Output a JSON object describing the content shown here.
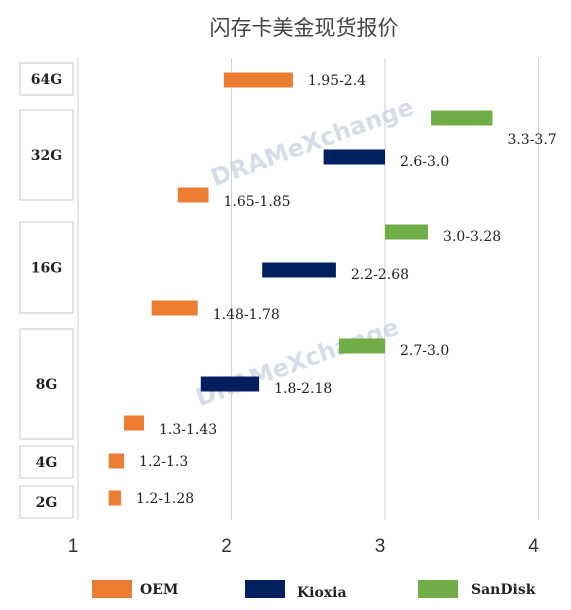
{
  "chart_data": {
    "type": "bar",
    "orientation": "horizontal-range",
    "title": "闪存卡美金现货报价",
    "x_ticks": [
      "1",
      "2",
      "3",
      "4"
    ],
    "xlim": [
      1,
      4.1
    ],
    "grid": true,
    "legend_position": "bottom",
    "watermark": "DRAMeXchange",
    "series": [
      {
        "name": "OEM",
        "color": "#ED7D31"
      },
      {
        "name": "Kioxia",
        "color": "#002060"
      },
      {
        "name": "SanDisk",
        "color": "#70AD47"
      }
    ],
    "groups": [
      {
        "label": "64G",
        "bars": [
          {
            "series": "OEM",
            "low": 1.95,
            "high": 2.4,
            "label": "1.95-2.4"
          }
        ]
      },
      {
        "label": "32G",
        "bars": [
          {
            "series": "SanDisk",
            "low": 3.3,
            "high": 3.7,
            "label": "3.3-3.7"
          },
          {
            "series": "Kioxia",
            "low": 2.6,
            "high": 3.0,
            "label": "2.6-3.0"
          },
          {
            "series": "OEM",
            "low": 1.65,
            "high": 1.85,
            "label": "1.65-1.85"
          }
        ]
      },
      {
        "label": "16G",
        "bars": [
          {
            "series": "SanDisk",
            "low": 3.0,
            "high": 3.28,
            "label": "3.0-3.28"
          },
          {
            "series": "Kioxia",
            "low": 2.2,
            "high": 2.68,
            "label": "2.2-2.68"
          },
          {
            "series": "OEM",
            "low": 1.48,
            "high": 1.78,
            "label": "1.48-1.78"
          }
        ]
      },
      {
        "label": "8G",
        "bars": [
          {
            "series": "SanDisk",
            "low": 2.7,
            "high": 3.0,
            "label": "2.7-3.0"
          },
          {
            "series": "Kioxia",
            "low": 1.8,
            "high": 2.18,
            "label": "1.8-2.18"
          },
          {
            "series": "OEM",
            "low": 1.3,
            "high": 1.43,
            "label": "1.3-1.43"
          }
        ]
      },
      {
        "label": "4G",
        "bars": [
          {
            "series": "OEM",
            "low": 1.2,
            "high": 1.3,
            "label": "1.2-1.3"
          }
        ]
      },
      {
        "label": "2G",
        "bars": [
          {
            "series": "OEM",
            "low": 1.2,
            "high": 1.28,
            "label": "1.2-1.28"
          }
        ]
      }
    ]
  }
}
